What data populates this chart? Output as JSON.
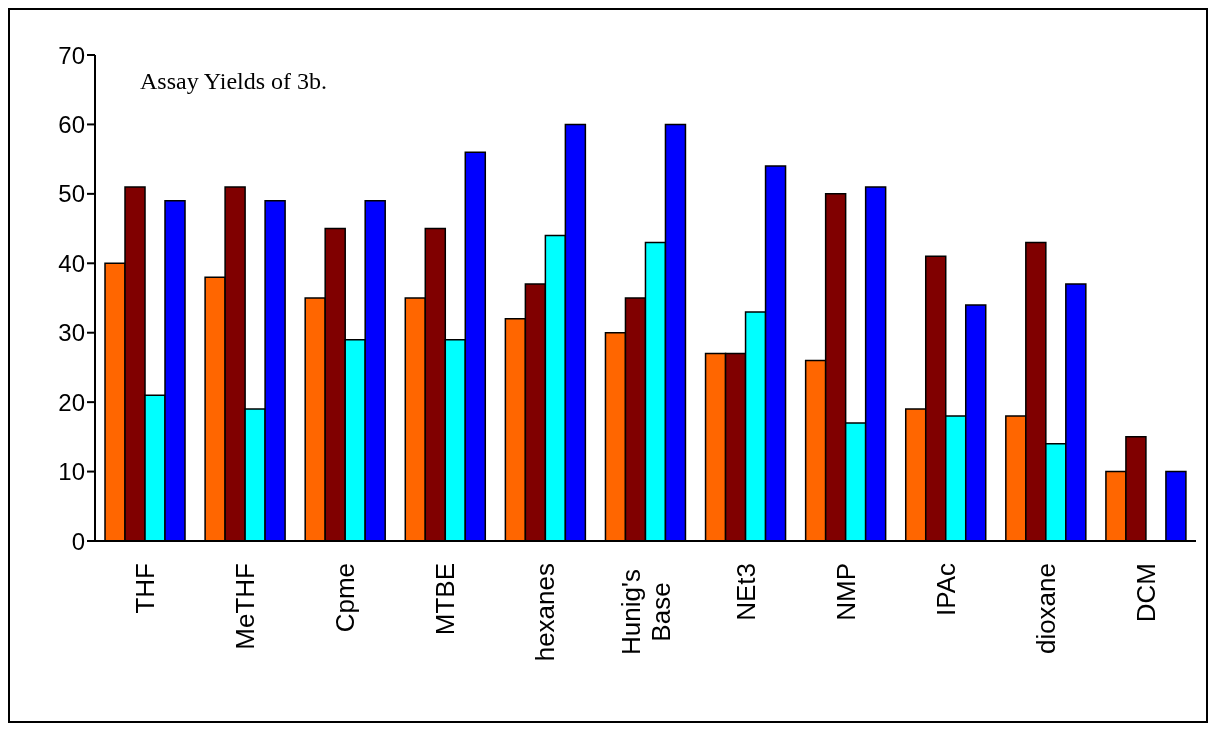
{
  "chart_data": {
    "type": "bar",
    "title": "Assay Yields of 3b.",
    "categories": [
      "THF",
      "MeTHF",
      "Cpme",
      "MTBE",
      "hexanes",
      "Hunig's Base",
      "NEt3",
      "NMP",
      "IPAc",
      "dioxane",
      "DCM"
    ],
    "series": [
      {
        "color": "#ff6600",
        "values": [
          40,
          38,
          35,
          35,
          32,
          30,
          27,
          26,
          19,
          18,
          10
        ]
      },
      {
        "color": "#800000",
        "values": [
          51,
          51,
          45,
          45,
          37,
          35,
          27,
          50,
          41,
          43,
          15
        ]
      },
      {
        "color": "#00ffff",
        "values": [
          21,
          19,
          29,
          29,
          44,
          43,
          33,
          17,
          18,
          14,
          null
        ]
      },
      {
        "color": "#0000ff",
        "values": [
          49,
          49,
          49,
          56,
          60,
          60,
          54,
          51,
          34,
          37,
          10
        ]
      }
    ],
    "ylim": [
      0,
      70
    ],
    "yticks": [
      0,
      10,
      20,
      30,
      40,
      50,
      60,
      70
    ],
    "grid": false,
    "legend": false
  }
}
